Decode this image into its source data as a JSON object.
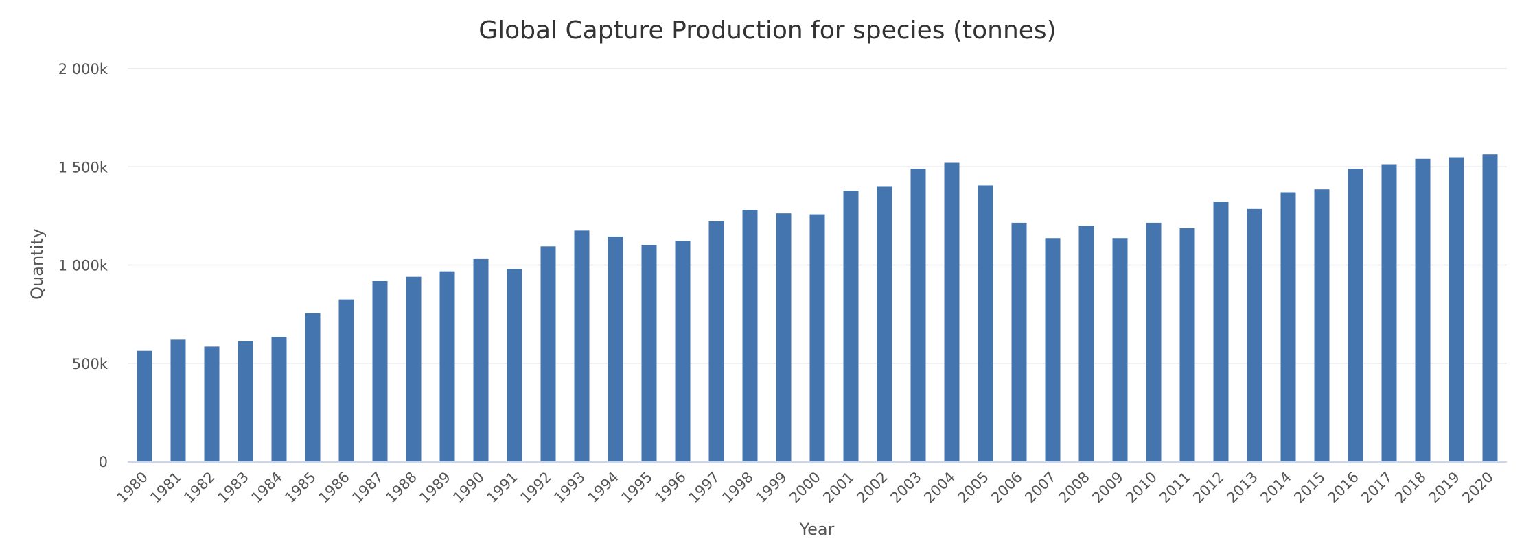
{
  "chart_data": {
    "type": "bar",
    "title": "Global Capture Production for species (tonnes)",
    "xlabel": "Year",
    "ylabel": "Quantity",
    "ylim": [
      0,
      2000000
    ],
    "y_ticks": [
      {
        "value": 0,
        "label": "0"
      },
      {
        "value": 500000,
        "label": "500k"
      },
      {
        "value": 1000000,
        "label": "1 000k"
      },
      {
        "value": 1500000,
        "label": "1 500k"
      },
      {
        "value": 2000000,
        "label": "2 000k"
      }
    ],
    "grid": true,
    "legend": "none",
    "bar_color": "#4575ae",
    "categories": [
      "1980",
      "1981",
      "1982",
      "1983",
      "1984",
      "1985",
      "1986",
      "1987",
      "1988",
      "1989",
      "1990",
      "1991",
      "1992",
      "1993",
      "1994",
      "1995",
      "1996",
      "1997",
      "1998",
      "1999",
      "2000",
      "2001",
      "2002",
      "2003",
      "2004",
      "2005",
      "2006",
      "2007",
      "2008",
      "2009",
      "2010",
      "2011",
      "2012",
      "2013",
      "2014",
      "2015",
      "2016",
      "2017",
      "2018",
      "2019",
      "2020"
    ],
    "values": [
      563000,
      620000,
      585000,
      612000,
      635000,
      755000,
      825000,
      918000,
      940000,
      968000,
      1030000,
      980000,
      1095000,
      1175000,
      1145000,
      1102000,
      1123000,
      1223000,
      1280000,
      1263000,
      1258000,
      1378000,
      1398000,
      1490000,
      1520000,
      1405000,
      1215000,
      1137000,
      1200000,
      1137000,
      1215000,
      1187000,
      1322000,
      1285000,
      1370000,
      1385000,
      1490000,
      1513000,
      1540000,
      1548000,
      1563000
    ]
  }
}
